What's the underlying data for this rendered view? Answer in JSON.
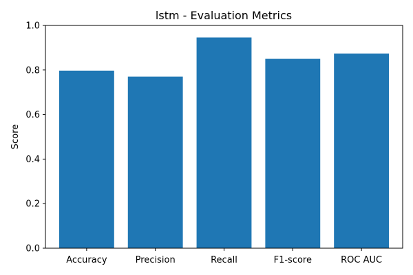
{
  "chart_data": {
    "type": "bar",
    "title": "lstm - Evaluation Metrics",
    "xlabel": "",
    "ylabel": "Score",
    "categories": [
      "Accuracy",
      "Precision",
      "Recall",
      "F1-score",
      "ROC AUC"
    ],
    "values": [
      0.797,
      0.77,
      0.946,
      0.85,
      0.874
    ],
    "ylim": [
      0,
      1.0
    ],
    "yticks": [
      "0.0",
      "0.2",
      "0.4",
      "0.6",
      "0.8",
      "1.0"
    ],
    "grid": false,
    "legend": false,
    "bar_color": "#1f77b4"
  }
}
